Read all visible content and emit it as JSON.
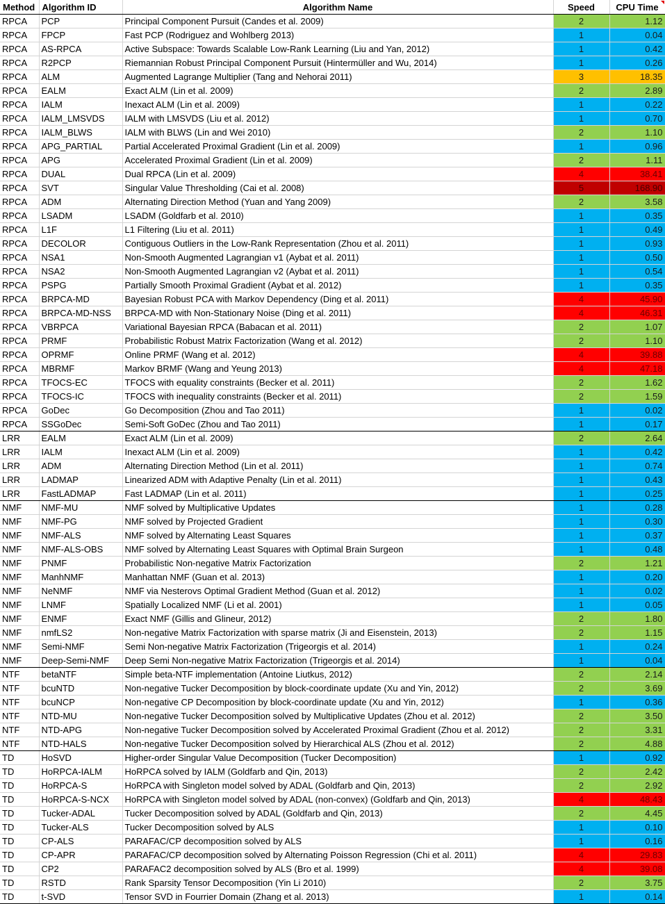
{
  "columns": {
    "method": "Method",
    "algorithm_id": "Algorithm ID",
    "algorithm_name": "Algorithm Name",
    "speed": "Speed",
    "cpu_time": "CPU Time"
  },
  "speed_colors": {
    "1": "#00b0f0",
    "2": "#92d050",
    "3": "#ffc000",
    "4": "#ff0000",
    "5": "#c00000"
  },
  "rows": [
    {
      "method": "RPCA",
      "id": "PCP",
      "name": "Principal Component Pursuit (Candes et al. 2009)",
      "speed": "2",
      "cpu": "1.12"
    },
    {
      "method": "RPCA",
      "id": "FPCP",
      "name": "Fast PCP (Rodriguez and Wohlberg 2013)",
      "speed": "1",
      "cpu": "0.04"
    },
    {
      "method": "RPCA",
      "id": "AS-RPCA",
      "name": "Active Subspace: Towards Scalable Low-Rank Learning (Liu and Yan, 2012)",
      "speed": "1",
      "cpu": "0.42"
    },
    {
      "method": "RPCA",
      "id": "R2PCP",
      "name": "Riemannian Robust Principal Component Pursuit (Hintermüller and Wu, 2014)",
      "speed": "1",
      "cpu": "0.26"
    },
    {
      "method": "RPCA",
      "id": "ALM",
      "name": "Augmented Lagrange Multiplier (Tang and Nehorai 2011)",
      "speed": "3",
      "cpu": "18.35"
    },
    {
      "method": "RPCA",
      "id": "EALM",
      "name": "Exact ALM (Lin et al. 2009)",
      "speed": "2",
      "cpu": "2.89"
    },
    {
      "method": "RPCA",
      "id": "IALM",
      "name": "Inexact ALM (Lin et al. 2009)",
      "speed": "1",
      "cpu": "0.22"
    },
    {
      "method": "RPCA",
      "id": "IALM_LMSVDS",
      "name": "IALM with LMSVDS (Liu et al. 2012)",
      "speed": "1",
      "cpu": "0.70"
    },
    {
      "method": "RPCA",
      "id": "IALM_BLWS",
      "name": "IALM with BLWS (Lin and Wei 2010)",
      "speed": "2",
      "cpu": "1.10"
    },
    {
      "method": "RPCA",
      "id": "APG_PARTIAL",
      "name": "Partial Accelerated Proximal Gradient (Lin et al. 2009)",
      "speed": "1",
      "cpu": "0.96"
    },
    {
      "method": "RPCA",
      "id": "APG",
      "name": "Accelerated Proximal Gradient (Lin et al. 2009)",
      "speed": "2",
      "cpu": "1.11"
    },
    {
      "method": "RPCA",
      "id": "DUAL",
      "name": "Dual RPCA (Lin et al. 2009)",
      "speed": "4",
      "cpu": "38.41"
    },
    {
      "method": "RPCA",
      "id": "SVT",
      "name": "Singular Value Thresholding (Cai et al. 2008)",
      "speed": "5",
      "cpu": "168.90"
    },
    {
      "method": "RPCA",
      "id": "ADM",
      "name": "Alternating Direction Method (Yuan and Yang 2009)",
      "speed": "2",
      "cpu": "3.58"
    },
    {
      "method": "RPCA",
      "id": "LSADM",
      "name": "LSADM (Goldfarb et al. 2010)",
      "speed": "1",
      "cpu": "0.35"
    },
    {
      "method": "RPCA",
      "id": "L1F",
      "name": "L1 Filtering (Liu et al. 2011)",
      "speed": "1",
      "cpu": "0.49"
    },
    {
      "method": "RPCA",
      "id": "DECOLOR",
      "name": "Contiguous Outliers in the Low-Rank Representation (Zhou et al. 2011)",
      "speed": "1",
      "cpu": "0.93"
    },
    {
      "method": "RPCA",
      "id": "NSA1",
      "name": "Non-Smooth Augmented Lagrangian v1 (Aybat et al. 2011)",
      "speed": "1",
      "cpu": "0.50"
    },
    {
      "method": "RPCA",
      "id": "NSA2",
      "name": "Non-Smooth Augmented Lagrangian v2 (Aybat et al. 2011)",
      "speed": "1",
      "cpu": "0.54"
    },
    {
      "method": "RPCA",
      "id": "PSPG",
      "name": "Partially Smooth Proximal Gradient (Aybat et al. 2012)",
      "speed": "1",
      "cpu": "0.35"
    },
    {
      "method": "RPCA",
      "id": "BRPCA-MD",
      "name": "Bayesian Robust PCA with Markov Dependency (Ding et al. 2011)",
      "speed": "4",
      "cpu": "45.90"
    },
    {
      "method": "RPCA",
      "id": "BRPCA-MD-NSS",
      "name": "BRPCA-MD with Non-Stationary Noise (Ding et al. 2011)",
      "speed": "4",
      "cpu": "46.31"
    },
    {
      "method": "RPCA",
      "id": "VBRPCA",
      "name": "Variational Bayesian RPCA (Babacan et al. 2011)",
      "speed": "2",
      "cpu": "1.07"
    },
    {
      "method": "RPCA",
      "id": "PRMF",
      "name": "Probabilistic Robust Matrix Factorization (Wang et al. 2012)",
      "speed": "2",
      "cpu": "1.10"
    },
    {
      "method": "RPCA",
      "id": "OPRMF",
      "name": "Online PRMF (Wang et al. 2012)",
      "speed": "4",
      "cpu": "39.88"
    },
    {
      "method": "RPCA",
      "id": "MBRMF",
      "name": "Markov BRMF (Wang and Yeung 2013)",
      "speed": "4",
      "cpu": "47.18"
    },
    {
      "method": "RPCA",
      "id": "TFOCS-EC",
      "name": "TFOCS with equality constraints (Becker et al. 2011)",
      "speed": "2",
      "cpu": "1.62"
    },
    {
      "method": "RPCA",
      "id": "TFOCS-IC",
      "name": "TFOCS with inequality constraints (Becker et al. 2011)",
      "speed": "2",
      "cpu": "1.59"
    },
    {
      "method": "RPCA",
      "id": "GoDec",
      "name": "Go Decomposition (Zhou and Tao 2011)",
      "speed": "1",
      "cpu": "0.02"
    },
    {
      "method": "RPCA",
      "id": "SSGoDec",
      "name": "Semi-Soft GoDec (Zhou and Tao 2011)",
      "speed": "1",
      "cpu": "0.17",
      "group_end": true
    },
    {
      "method": "LRR",
      "id": "EALM",
      "name": "Exact ALM (Lin et al. 2009)",
      "speed": "2",
      "cpu": "2.64"
    },
    {
      "method": "LRR",
      "id": "IALM",
      "name": "Inexact ALM (Lin et al. 2009)",
      "speed": "1",
      "cpu": "0.42"
    },
    {
      "method": "LRR",
      "id": "ADM",
      "name": "Alternating Direction Method (Lin et al. 2011)",
      "speed": "1",
      "cpu": "0.74"
    },
    {
      "method": "LRR",
      "id": "LADMAP",
      "name": "Linearized ADM with Adaptive Penalty (Lin et al. 2011)",
      "speed": "1",
      "cpu": "0.43"
    },
    {
      "method": "LRR",
      "id": "FastLADMAP",
      "name": "Fast LADMAP (Lin et al. 2011)",
      "speed": "1",
      "cpu": "0.25",
      "group_end": true
    },
    {
      "method": "NMF",
      "id": "NMF-MU",
      "name": "NMF solved by Multiplicative Updates",
      "speed": "1",
      "cpu": "0.28"
    },
    {
      "method": "NMF",
      "id": "NMF-PG",
      "name": "NMF solved by Projected Gradient",
      "speed": "1",
      "cpu": "0.30"
    },
    {
      "method": "NMF",
      "id": "NMF-ALS",
      "name": "NMF solved by Alternating Least Squares",
      "speed": "1",
      "cpu": "0.37"
    },
    {
      "method": "NMF",
      "id": "NMF-ALS-OBS",
      "name": "NMF solved by Alternating Least Squares with Optimal Brain Surgeon",
      "speed": "1",
      "cpu": "0.48"
    },
    {
      "method": "NMF",
      "id": "PNMF",
      "name": "Probabilistic Non-negative Matrix Factorization",
      "speed": "2",
      "cpu": "1.21"
    },
    {
      "method": "NMF",
      "id": "ManhNMF",
      "name": "Manhattan NMF (Guan et al. 2013)",
      "speed": "1",
      "cpu": "0.20"
    },
    {
      "method": "NMF",
      "id": "NeNMF",
      "name": "NMF via Nesterovs Optimal Gradient Method (Guan et al. 2012)",
      "speed": "1",
      "cpu": "0.02"
    },
    {
      "method": "NMF",
      "id": "LNMF",
      "name": "Spatially Localized NMF (Li et al. 2001)",
      "speed": "1",
      "cpu": "0.05"
    },
    {
      "method": "NMF",
      "id": "ENMF",
      "name": "Exact NMF (Gillis and Glineur, 2012)",
      "speed": "2",
      "cpu": "1.80"
    },
    {
      "method": "NMF",
      "id": "nmfLS2",
      "name": "Non-negative Matrix Factorization with sparse matrix (Ji and Eisenstein, 2013)",
      "speed": "2",
      "cpu": "1.15"
    },
    {
      "method": "NMF",
      "id": "Semi-NMF",
      "name": "Semi Non-negative Matrix Factorization (Trigeorgis et al. 2014)",
      "speed": "1",
      "cpu": "0.24"
    },
    {
      "method": "NMF",
      "id": "Deep-Semi-NMF",
      "name": "Deep Semi Non-negative Matrix Factorization (Trigeorgis et al. 2014)",
      "speed": "1",
      "cpu": "0.04",
      "group_end": true
    },
    {
      "method": "NTF",
      "id": "betaNTF",
      "name": "Simple beta-NTF implementation (Antoine Liutkus, 2012)",
      "speed": "2",
      "cpu": "2.14"
    },
    {
      "method": "NTF",
      "id": "bcuNTD",
      "name": "Non-negative Tucker Decomposition by block-coordinate update (Xu and Yin, 2012)",
      "speed": "2",
      "cpu": "3.69"
    },
    {
      "method": "NTF",
      "id": "bcuNCP",
      "name": "Non-negative CP Decomposition by block-coordinate update (Xu and Yin, 2012)",
      "speed": "1",
      "cpu": "0.36"
    },
    {
      "method": "NTF",
      "id": "NTD-MU",
      "name": "Non-negative Tucker Decomposition solved by Multiplicative Updates (Zhou et al. 2012)",
      "speed": "2",
      "cpu": "3.50"
    },
    {
      "method": "NTF",
      "id": "NTD-APG",
      "name": "Non-negative Tucker Decomposition solved by Accelerated Proximal Gradient (Zhou et al. 2012)",
      "speed": "2",
      "cpu": "3.31"
    },
    {
      "method": "NTF",
      "id": "NTD-HALS",
      "name": "Non-negative Tucker Decomposition solved by Hierarchical ALS  (Zhou et al. 2012)",
      "speed": "2",
      "cpu": "4.88",
      "group_end": true
    },
    {
      "method": "TD",
      "id": "HoSVD",
      "name": "Higher-order Singular Value Decomposition (Tucker Decomposition)",
      "speed": "1",
      "cpu": "0.92"
    },
    {
      "method": "TD",
      "id": "HoRPCA-IALM",
      "name": "HoRPCA solved by IALM (Goldfarb and Qin, 2013)",
      "speed": "2",
      "cpu": "2.42"
    },
    {
      "method": "TD",
      "id": "HoRPCA-S",
      "name": "HoRPCA with Singleton model solved by ADAL (Goldfarb and Qin, 2013)",
      "speed": "2",
      "cpu": "2.92"
    },
    {
      "method": "TD",
      "id": "HoRPCA-S-NCX",
      "name": "HoRPCA with Singleton model solved by ADAL (non-convex) (Goldfarb and Qin, 2013)",
      "speed": "4",
      "cpu": "48.43"
    },
    {
      "method": "TD",
      "id": "Tucker-ADAL",
      "name": "Tucker Decomposition solved by ADAL (Goldfarb and Qin, 2013)",
      "speed": "2",
      "cpu": "4.45"
    },
    {
      "method": "TD",
      "id": "Tucker-ALS",
      "name": "Tucker Decomposition solved by ALS",
      "speed": "1",
      "cpu": "0.10"
    },
    {
      "method": "TD",
      "id": "CP-ALS",
      "name": "PARAFAC/CP decomposition solved by ALS",
      "speed": "1",
      "cpu": "0.16"
    },
    {
      "method": "TD",
      "id": "CP-APR",
      "name": "PARAFAC/CP decomposition solved by Alternating Poisson Regression (Chi et al. 2011)",
      "speed": "4",
      "cpu": "29.83"
    },
    {
      "method": "TD",
      "id": "CP2",
      "name": "PARAFAC2 decomposition solved by ALS (Bro et al. 1999)",
      "speed": "4",
      "cpu": "39.08"
    },
    {
      "method": "TD",
      "id": "RSTD",
      "name": "Rank Sparsity Tensor Decomposition (Yin Li 2010)",
      "speed": "2",
      "cpu": "3.75"
    },
    {
      "method": "TD",
      "id": "t-SVD",
      "name": "Tensor SVD in Fourrier Domain (Zhang et al. 2013)",
      "speed": "1",
      "cpu": "0.14",
      "group_end": true
    }
  ]
}
